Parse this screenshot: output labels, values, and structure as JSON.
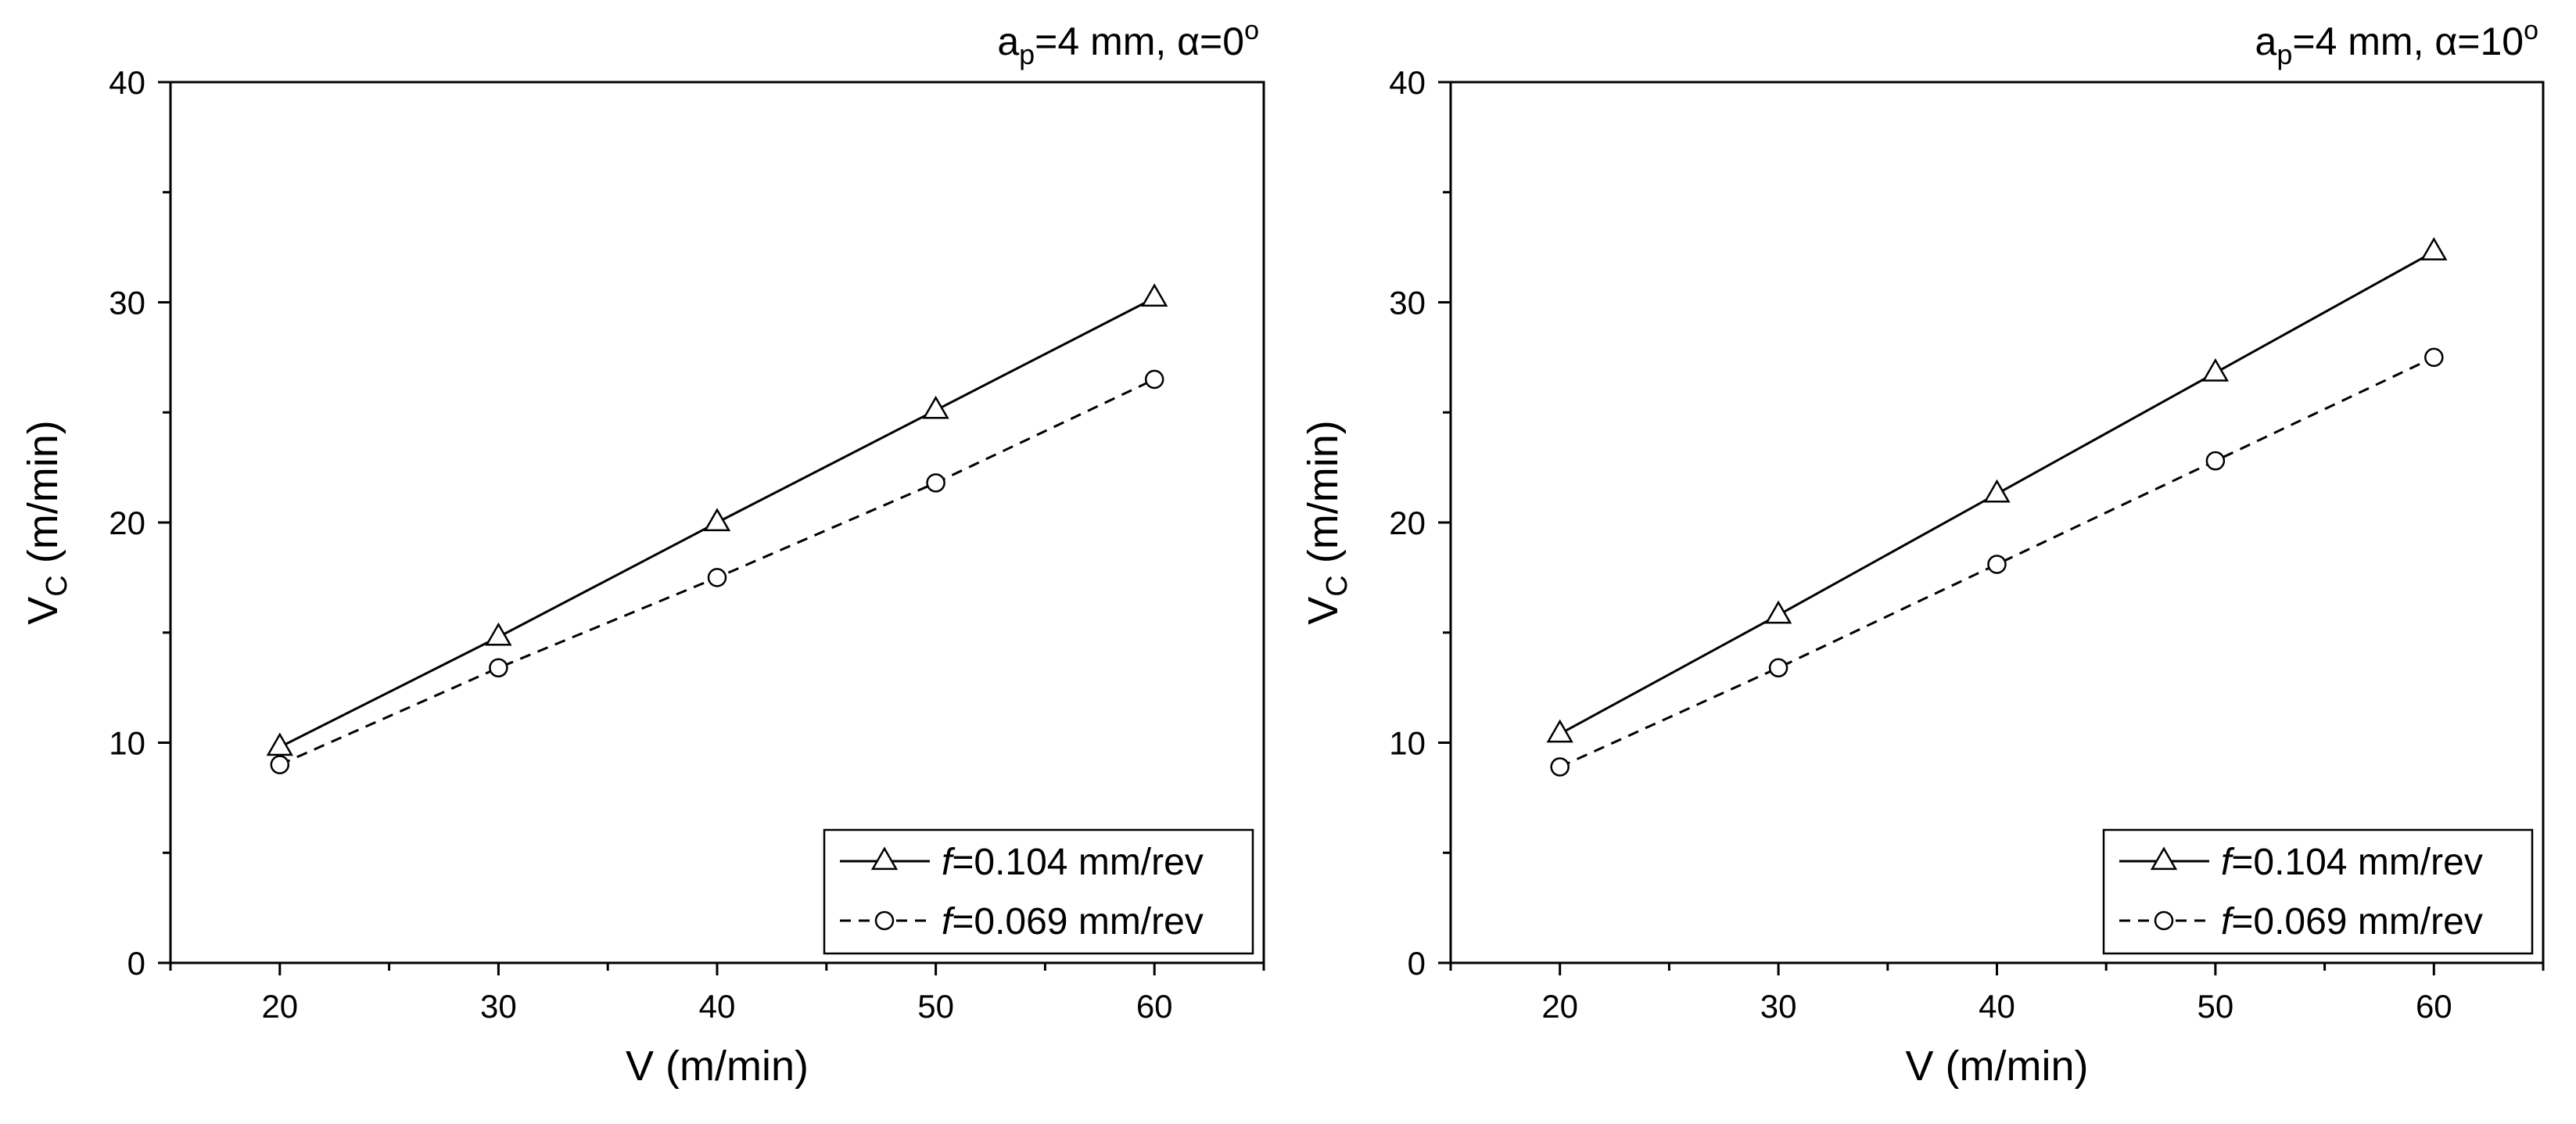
{
  "chart_data": [
    {
      "type": "line",
      "title": {
        "base": "a",
        "sub": "p",
        "rest": "=4 mm, α=0",
        "sup": "o"
      },
      "xlabel": "V (m/min)",
      "ylabel": {
        "base": "V",
        "sub": "C",
        "rest": " (m/min)"
      },
      "xlim": [
        15,
        65
      ],
      "ylim": [
        0,
        40
      ],
      "xticks": [
        20,
        30,
        40,
        50,
        60
      ],
      "yticks": [
        0,
        10,
        20,
        30,
        40
      ],
      "legend_position": "bottom-right",
      "series": [
        {
          "italic": "f",
          "label": "=0.104 mm/rev",
          "marker": "triangle",
          "line": "solid",
          "x": [
            20,
            30,
            40,
            50,
            60
          ],
          "y": [
            9.8,
            14.8,
            20.0,
            25.1,
            30.2
          ]
        },
        {
          "italic": "f",
          "label": "=0.069 mm/rev",
          "marker": "circle",
          "line": "dashed",
          "x": [
            20,
            30,
            40,
            50,
            60
          ],
          "y": [
            9.0,
            13.4,
            17.5,
            21.8,
            26.5
          ]
        }
      ]
    },
    {
      "type": "line",
      "title": {
        "base": "a",
        "sub": "p",
        "rest": "=4 mm, α=10",
        "sup": "o"
      },
      "xlabel": "V (m/min)",
      "ylabel": {
        "base": "V",
        "sub": "C",
        "rest": " (m/min)"
      },
      "xlim": [
        15,
        65
      ],
      "ylim": [
        0,
        40
      ],
      "xticks": [
        20,
        30,
        40,
        50,
        60
      ],
      "yticks": [
        0,
        10,
        20,
        30,
        40
      ],
      "legend_position": "bottom-right",
      "series": [
        {
          "italic": "f",
          "label": "=0.104 mm/rev",
          "marker": "triangle",
          "line": "solid",
          "x": [
            20,
            30,
            40,
            50,
            60
          ],
          "y": [
            10.4,
            15.8,
            21.3,
            26.8,
            32.3
          ]
        },
        {
          "italic": "f",
          "label": "=0.069 mm/rev",
          "marker": "circle",
          "line": "dashed",
          "x": [
            20,
            30,
            40,
            50,
            60
          ],
          "y": [
            8.9,
            13.4,
            18.1,
            22.8,
            27.5
          ]
        }
      ]
    }
  ]
}
